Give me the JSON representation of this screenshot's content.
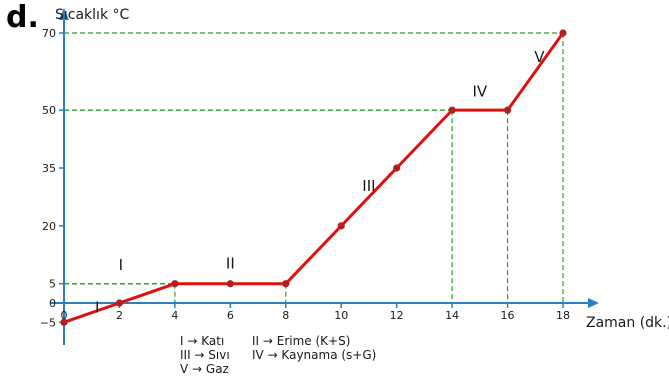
{
  "part_label": "d.",
  "chart_data": {
    "type": "line",
    "ylabel": "Sıcaklık °C",
    "xlabel": "Zaman (dk.)",
    "x": [
      0,
      2,
      4,
      6,
      8,
      10,
      12,
      14,
      16,
      18
    ],
    "y": [
      -5,
      0,
      5,
      5,
      5,
      20,
      35,
      50,
      50,
      70
    ],
    "xlim": [
      0,
      18
    ],
    "ylim": [
      -5,
      70
    ],
    "xticks": [
      "0",
      "2",
      "4",
      "6",
      "8",
      "10",
      "12",
      "14",
      "16",
      "18"
    ],
    "yticks": [
      {
        "value": -5,
        "label": "−5"
      },
      {
        "value": 0,
        "label": "0"
      },
      {
        "value": 5,
        "label": "5"
      },
      {
        "value": 20,
        "label": "20"
      },
      {
        "value": 35,
        "label": "35"
      },
      {
        "value": 50,
        "label": "50"
      },
      {
        "value": 70,
        "label": "70"
      }
    ],
    "guide_points": [
      {
        "x": 4,
        "y": 5
      },
      {
        "x": 8,
        "y": 5
      },
      {
        "x": 14,
        "y": 50
      },
      {
        "x": 16,
        "y": 50
      },
      {
        "x": 18,
        "y": 70
      }
    ],
    "phase_labels": [
      {
        "text": "I",
        "x": 1.2,
        "y": -2.5
      },
      {
        "text": "I",
        "x": 2.05,
        "y": 8.5
      },
      {
        "text": "II",
        "x": 6.0,
        "y": 9.0
      },
      {
        "text": "III",
        "x": 11.0,
        "y": 29.0
      },
      {
        "text": "IV",
        "x": 15.0,
        "y": 53.5
      },
      {
        "text": "V",
        "x": 17.15,
        "y": 62.5
      }
    ],
    "line_color": "#e01010",
    "marker_color": "#b02020",
    "axis_color": "#2a7fc0",
    "guide_color": "#2e9b2e",
    "grid": false
  },
  "legend": [
    [
      "I → Katı",
      "II → Erime (K+S)"
    ],
    [
      "III → Sıvı",
      "IV → Kaynama (s+G)"
    ],
    [
      "V → Gaz",
      ""
    ]
  ]
}
